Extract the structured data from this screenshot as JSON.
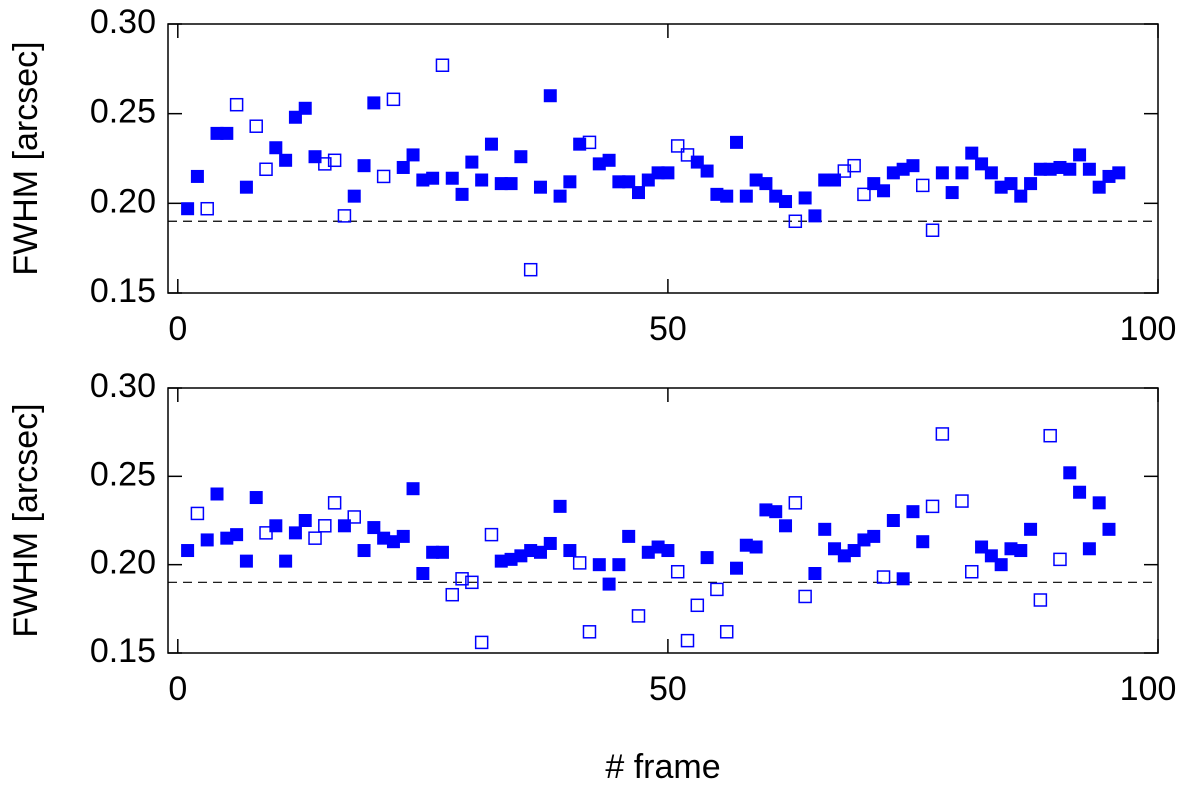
{
  "chart_data": [
    {
      "type": "scatter",
      "ylabel": "FWHM [arcsec]",
      "xlim": [
        -1,
        100
      ],
      "xticks": [
        0,
        50,
        100
      ],
      "ylim": [
        0.15,
        0.3
      ],
      "yticks": [
        0.15,
        {
          "value": 0.2,
          "label": "0.20"
        },
        0.25,
        {
          "value": 0.3,
          "label": "0.30"
        }
      ],
      "reference_line": 0.19,
      "series": [
        {
          "marker": "filled",
          "color": "#0000ff",
          "x": [
            1,
            2,
            4,
            5,
            7,
            10,
            11,
            12,
            13,
            14,
            18,
            19,
            20,
            23,
            24,
            25,
            26,
            28,
            29,
            30,
            31,
            32,
            33,
            34,
            35,
            37,
            38,
            39,
            40,
            41,
            43,
            44,
            45,
            46,
            47,
            48,
            49,
            50,
            53,
            54,
            55,
            56,
            57,
            58,
            59,
            60,
            61,
            62,
            64,
            65,
            66,
            67,
            71,
            72,
            73,
            74,
            75,
            78,
            79,
            80,
            81,
            82,
            83,
            84,
            85,
            86,
            87,
            88,
            89,
            90,
            91,
            92,
            93,
            94,
            95,
            96
          ],
          "values": [
            0.197,
            0.215,
            0.239,
            0.239,
            0.209,
            0.231,
            0.224,
            0.248,
            0.253,
            0.226,
            0.204,
            0.221,
            0.256,
            0.22,
            0.227,
            0.213,
            0.214,
            0.214,
            0.205,
            0.223,
            0.213,
            0.233,
            0.211,
            0.211,
            0.226,
            0.209,
            0.26,
            0.204,
            0.212,
            0.233,
            0.222,
            0.224,
            0.212,
            0.212,
            0.206,
            0.213,
            0.217,
            0.217,
            0.223,
            0.218,
            0.205,
            0.204,
            0.234,
            0.204,
            0.213,
            0.211,
            0.204,
            0.201,
            0.203,
            0.193,
            0.213,
            0.213,
            0.211,
            0.207,
            0.217,
            0.219,
            0.221,
            0.217,
            0.206,
            0.217,
            0.228,
            0.222,
            0.217,
            0.209,
            0.211,
            0.204,
            0.211,
            0.219,
            0.219,
            0.22,
            0.219,
            0.227,
            0.219,
            0.209,
            0.215,
            0.217
          ]
        },
        {
          "marker": "open",
          "color": "#0000ff",
          "x": [
            3,
            6,
            8,
            9,
            15,
            16,
            17,
            21,
            22,
            27,
            36,
            42,
            51,
            52,
            63,
            68,
            69,
            70,
            76,
            77
          ],
          "values": [
            0.197,
            0.255,
            0.243,
            0.219,
            0.222,
            0.224,
            0.193,
            0.215,
            0.258,
            0.277,
            0.163,
            0.234,
            0.232,
            0.227,
            0.19,
            0.218,
            0.221,
            0.205,
            0.21,
            0.185
          ]
        }
      ]
    },
    {
      "type": "scatter",
      "ylabel": "FWHM [arcsec]",
      "xlabel": "# frame",
      "xlim": [
        -1,
        100
      ],
      "xticks": [
        0,
        50,
        100
      ],
      "ylim": [
        0.15,
        0.3
      ],
      "yticks": [
        0.15,
        {
          "value": 0.2,
          "label": "0.20"
        },
        0.25,
        {
          "value": 0.3,
          "label": "0.30"
        }
      ],
      "reference_line": 0.19,
      "series": [
        {
          "marker": "filled",
          "color": "#0000ff",
          "x": [
            1,
            3,
            4,
            5,
            6,
            7,
            8,
            10,
            11,
            12,
            13,
            17,
            19,
            20,
            21,
            22,
            23,
            24,
            25,
            26,
            27,
            33,
            34,
            35,
            36,
            37,
            38,
            39,
            40,
            43,
            44,
            45,
            46,
            48,
            49,
            50,
            54,
            57,
            58,
            59,
            60,
            61,
            62,
            65,
            66,
            67,
            68,
            69,
            70,
            71,
            73,
            74,
            75,
            76,
            82,
            83,
            84,
            85,
            86,
            87,
            91,
            92,
            93,
            94,
            95
          ],
          "values": [
            0.208,
            0.214,
            0.24,
            0.215,
            0.217,
            0.202,
            0.238,
            0.222,
            0.202,
            0.218,
            0.225,
            0.222,
            0.208,
            0.221,
            0.215,
            0.213,
            0.216,
            0.243,
            0.195,
            0.207,
            0.207,
            0.202,
            0.203,
            0.205,
            0.208,
            0.207,
            0.212,
            0.233,
            0.208,
            0.2,
            0.189,
            0.2,
            0.216,
            0.207,
            0.21,
            0.208,
            0.204,
            0.198,
            0.211,
            0.21,
            0.231,
            0.23,
            0.222,
            0.195,
            0.22,
            0.209,
            0.205,
            0.208,
            0.214,
            0.216,
            0.225,
            0.192,
            0.23,
            0.213,
            0.21,
            0.205,
            0.2,
            0.209,
            0.208,
            0.22,
            0.252,
            0.241,
            0.209,
            0.235,
            0.22
          ]
        },
        {
          "marker": "open",
          "color": "#0000ff",
          "x": [
            2,
            9,
            14,
            15,
            16,
            18,
            28,
            29,
            30,
            31,
            32,
            41,
            42,
            47,
            51,
            52,
            53,
            55,
            56,
            63,
            64,
            72,
            77,
            78,
            80,
            81,
            88,
            89,
            90
          ],
          "values": [
            0.229,
            0.218,
            0.215,
            0.222,
            0.235,
            0.227,
            0.183,
            0.192,
            0.19,
            0.156,
            0.217,
            0.201,
            0.162,
            0.171,
            0.196,
            0.157,
            0.177,
            0.186,
            0.162,
            0.235,
            0.182,
            0.193,
            0.233,
            0.274,
            0.236,
            0.196,
            0.18,
            0.273,
            0.203
          ]
        }
      ]
    }
  ]
}
